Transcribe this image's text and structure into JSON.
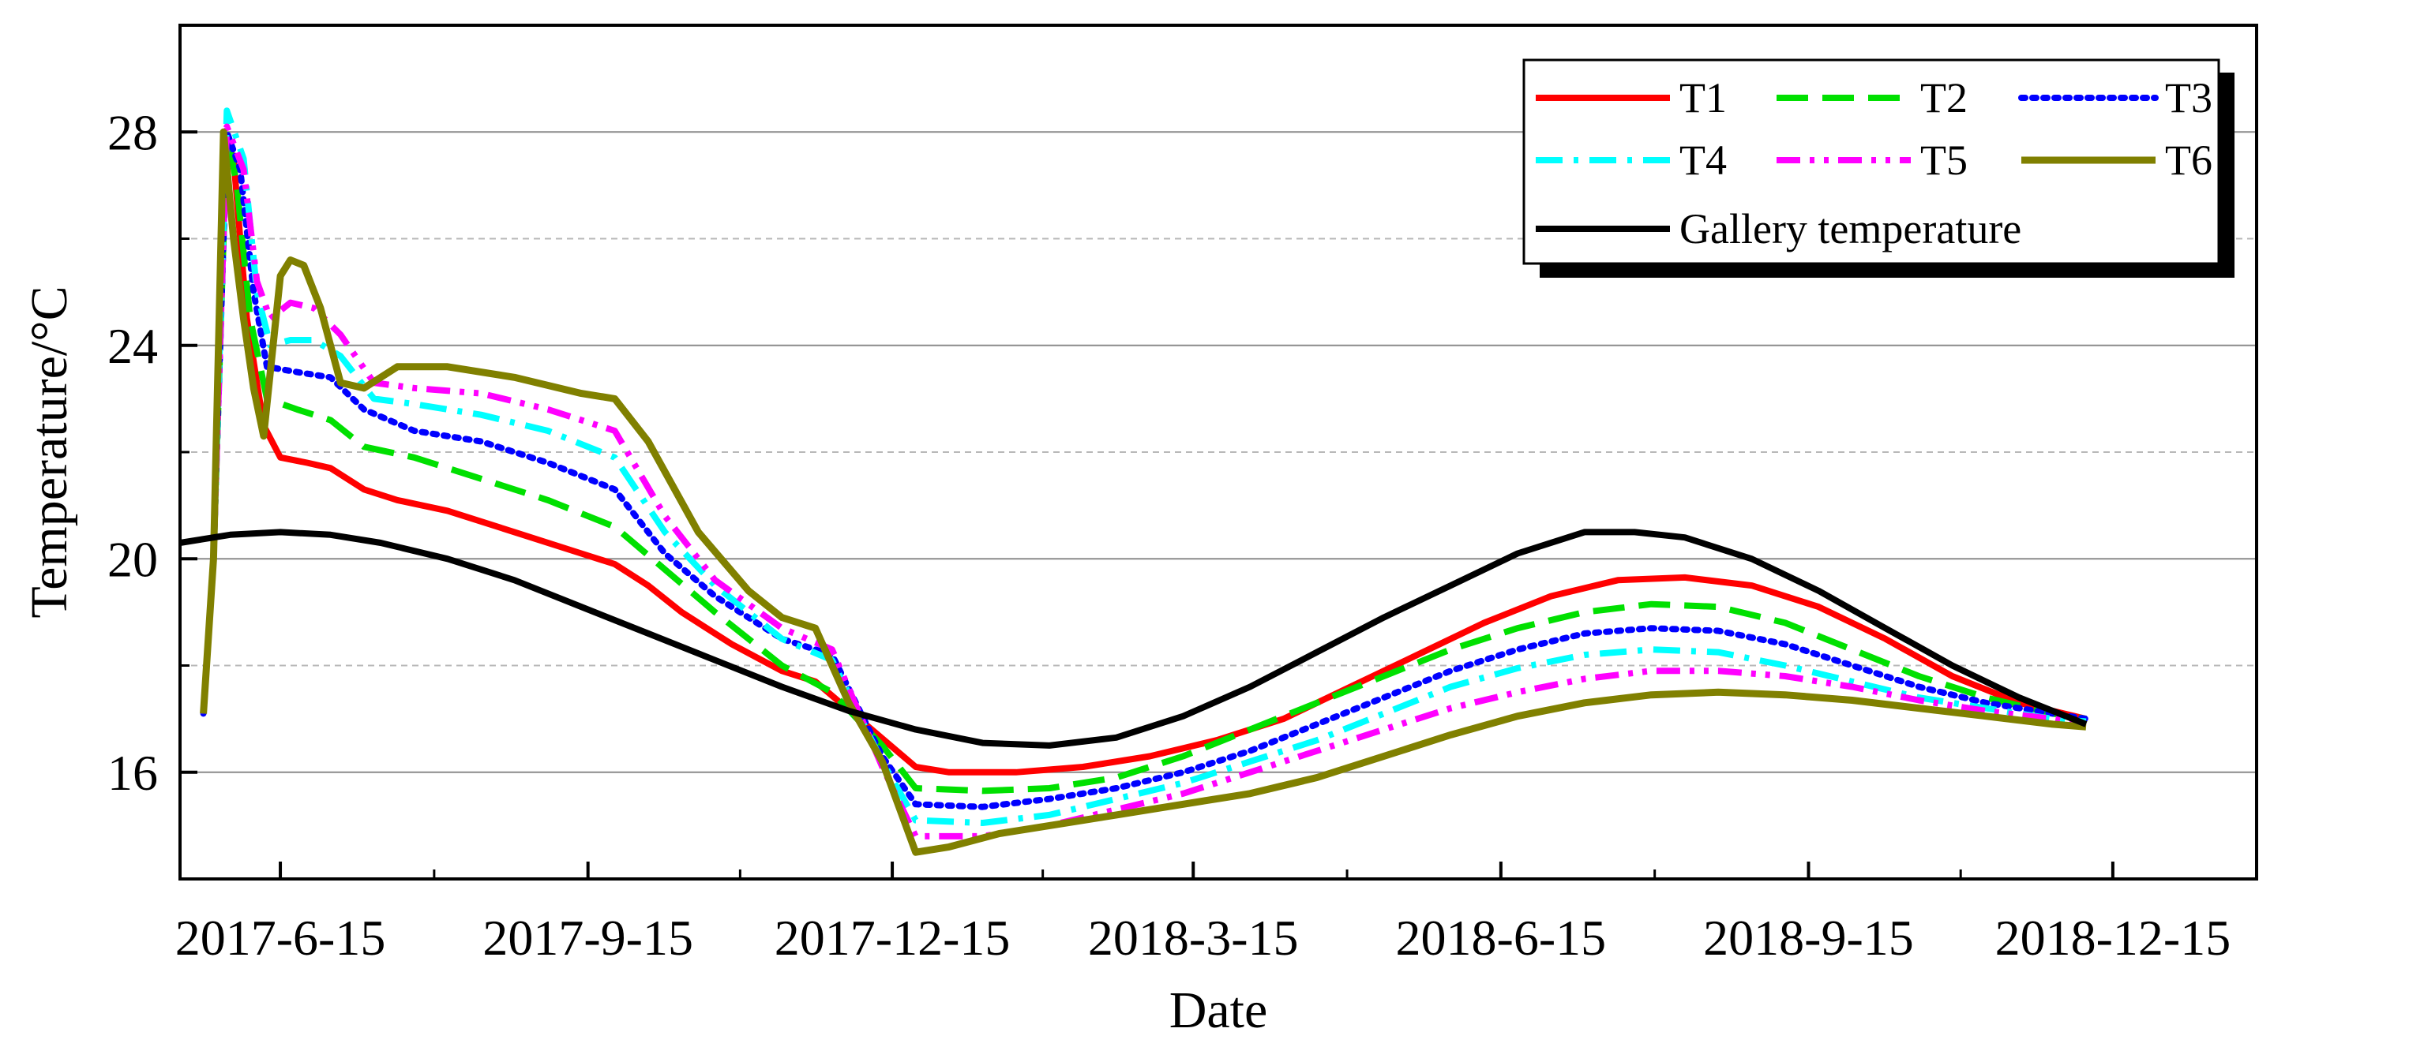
{
  "chart_data": {
    "type": "line",
    "title": "",
    "xlabel": "Date",
    "ylabel": "Temperature/°C",
    "x_ticks": [
      "2017-6-15",
      "2017-9-15",
      "2017-12-15",
      "2018-3-15",
      "2018-6-15",
      "2018-9-15",
      "2018-12-15"
    ],
    "x_tick_days": [
      0,
      92,
      183,
      273,
      365,
      457,
      548
    ],
    "xlim": [
      -30,
      591
    ],
    "ylim": [
      14,
      30
    ],
    "y_ticks": [
      16,
      20,
      24,
      28
    ],
    "y_minor_gridlines": [
      18,
      22,
      26
    ],
    "x_unit": "days since 2017-6-15",
    "legend_position": "top-right",
    "series": [
      {
        "name": "T1",
        "color": "#ff0000",
        "dash": "solid",
        "points": [
          [
            -23,
            17.1
          ],
          [
            -20,
            20
          ],
          [
            -17,
            28
          ],
          [
            -14,
            27.5
          ],
          [
            -10,
            24.5
          ],
          [
            -5,
            22.5
          ],
          [
            0,
            21.9
          ],
          [
            8,
            21.8
          ],
          [
            15,
            21.7
          ],
          [
            25,
            21.3
          ],
          [
            35,
            21.1
          ],
          [
            50,
            20.9
          ],
          [
            70,
            20.5
          ],
          [
            90,
            20.1
          ],
          [
            100,
            19.9
          ],
          [
            110,
            19.5
          ],
          [
            120,
            19
          ],
          [
            135,
            18.4
          ],
          [
            150,
            17.9
          ],
          [
            160,
            17.7
          ],
          [
            175,
            16.9
          ],
          [
            190,
            16.1
          ],
          [
            200,
            16
          ],
          [
            220,
            16
          ],
          [
            240,
            16.1
          ],
          [
            260,
            16.3
          ],
          [
            280,
            16.6
          ],
          [
            300,
            17
          ],
          [
            320,
            17.6
          ],
          [
            340,
            18.2
          ],
          [
            360,
            18.8
          ],
          [
            380,
            19.3
          ],
          [
            400,
            19.6
          ],
          [
            420,
            19.65
          ],
          [
            440,
            19.5
          ],
          [
            460,
            19.1
          ],
          [
            480,
            18.5
          ],
          [
            500,
            17.8
          ],
          [
            520,
            17.3
          ],
          [
            540,
            17
          ]
        ]
      },
      {
        "name": "T2",
        "color": "#00e000",
        "dash": "long-dash",
        "points": [
          [
            -23,
            17.1
          ],
          [
            -20,
            20
          ],
          [
            -16,
            28
          ],
          [
            -13,
            27
          ],
          [
            -9,
            24.5
          ],
          [
            -4,
            23
          ],
          [
            5,
            22.8
          ],
          [
            15,
            22.6
          ],
          [
            25,
            22.1
          ],
          [
            40,
            21.9
          ],
          [
            60,
            21.5
          ],
          [
            80,
            21.1
          ],
          [
            100,
            20.6
          ],
          [
            115,
            19.8
          ],
          [
            130,
            19
          ],
          [
            150,
            18
          ],
          [
            165,
            17.5
          ],
          [
            180,
            16.5
          ],
          [
            190,
            15.7
          ],
          [
            210,
            15.65
          ],
          [
            230,
            15.7
          ],
          [
            250,
            15.9
          ],
          [
            270,
            16.3
          ],
          [
            290,
            16.8
          ],
          [
            310,
            17.3
          ],
          [
            330,
            17.8
          ],
          [
            350,
            18.3
          ],
          [
            370,
            18.7
          ],
          [
            390,
            19
          ],
          [
            410,
            19.15
          ],
          [
            430,
            19.1
          ],
          [
            450,
            18.8
          ],
          [
            470,
            18.3
          ],
          [
            490,
            17.8
          ],
          [
            510,
            17.4
          ],
          [
            530,
            17.1
          ],
          [
            540,
            17
          ]
        ]
      },
      {
        "name": "T3",
        "color": "#0000ff",
        "dash": "dotted",
        "points": [
          [
            -23,
            17.1
          ],
          [
            -20,
            20
          ],
          [
            -16,
            28
          ],
          [
            -12,
            27.3
          ],
          [
            -8,
            25
          ],
          [
            -4,
            23.6
          ],
          [
            5,
            23.5
          ],
          [
            15,
            23.4
          ],
          [
            25,
            22.8
          ],
          [
            40,
            22.4
          ],
          [
            60,
            22.2
          ],
          [
            80,
            21.8
          ],
          [
            100,
            21.3
          ],
          [
            115,
            20.1
          ],
          [
            130,
            19.3
          ],
          [
            150,
            18.5
          ],
          [
            165,
            18.2
          ],
          [
            180,
            16.3
          ],
          [
            190,
            15.4
          ],
          [
            210,
            15.35
          ],
          [
            230,
            15.5
          ],
          [
            250,
            15.7
          ],
          [
            270,
            16
          ],
          [
            290,
            16.4
          ],
          [
            310,
            16.9
          ],
          [
            330,
            17.4
          ],
          [
            350,
            17.9
          ],
          [
            370,
            18.3
          ],
          [
            390,
            18.6
          ],
          [
            410,
            18.7
          ],
          [
            430,
            18.65
          ],
          [
            450,
            18.4
          ],
          [
            470,
            18
          ],
          [
            490,
            17.6
          ],
          [
            510,
            17.3
          ],
          [
            530,
            17.1
          ],
          [
            540,
            17
          ]
        ]
      },
      {
        "name": "T4",
        "color": "#00ffff",
        "dash": "dash-dot",
        "points": [
          [
            -23,
            17.1
          ],
          [
            -20,
            20
          ],
          [
            -16,
            28.4
          ],
          [
            -11,
            27.5
          ],
          [
            -7,
            25
          ],
          [
            -3,
            24
          ],
          [
            3,
            24.1
          ],
          [
            10,
            24.1
          ],
          [
            18,
            23.8
          ],
          [
            28,
            23
          ],
          [
            40,
            22.9
          ],
          [
            60,
            22.7
          ],
          [
            80,
            22.4
          ],
          [
            100,
            21.9
          ],
          [
            115,
            20.5
          ],
          [
            130,
            19.5
          ],
          [
            150,
            18.5
          ],
          [
            165,
            18.1
          ],
          [
            180,
            16.2
          ],
          [
            190,
            15.1
          ],
          [
            210,
            15.05
          ],
          [
            230,
            15.2
          ],
          [
            250,
            15.5
          ],
          [
            270,
            15.8
          ],
          [
            290,
            16.2
          ],
          [
            310,
            16.6
          ],
          [
            330,
            17.1
          ],
          [
            350,
            17.6
          ],
          [
            370,
            17.95
          ],
          [
            390,
            18.2
          ],
          [
            410,
            18.3
          ],
          [
            430,
            18.25
          ],
          [
            450,
            18
          ],
          [
            470,
            17.7
          ],
          [
            490,
            17.4
          ],
          [
            510,
            17.2
          ],
          [
            530,
            17
          ],
          [
            540,
            16.95
          ]
        ]
      },
      {
        "name": "T5",
        "color": "#ff00ff",
        "dash": "dash-dot-dot",
        "points": [
          [
            -23,
            17.1
          ],
          [
            -20,
            20
          ],
          [
            -16,
            28.1
          ],
          [
            -11,
            27.3
          ],
          [
            -7,
            25.2
          ],
          [
            -3,
            24.5
          ],
          [
            3,
            24.8
          ],
          [
            10,
            24.7
          ],
          [
            18,
            24.2
          ],
          [
            28,
            23.3
          ],
          [
            40,
            23.2
          ],
          [
            60,
            23.1
          ],
          [
            80,
            22.8
          ],
          [
            100,
            22.4
          ],
          [
            115,
            20.8
          ],
          [
            130,
            19.6
          ],
          [
            150,
            18.7
          ],
          [
            165,
            18.3
          ],
          [
            180,
            16.1
          ],
          [
            190,
            14.8
          ],
          [
            210,
            14.8
          ],
          [
            230,
            15
          ],
          [
            250,
            15.3
          ],
          [
            270,
            15.6
          ],
          [
            290,
            16
          ],
          [
            310,
            16.4
          ],
          [
            330,
            16.8
          ],
          [
            350,
            17.2
          ],
          [
            370,
            17.5
          ],
          [
            390,
            17.75
          ],
          [
            410,
            17.9
          ],
          [
            430,
            17.9
          ],
          [
            450,
            17.8
          ],
          [
            470,
            17.6
          ],
          [
            490,
            17.35
          ],
          [
            510,
            17.15
          ],
          [
            530,
            17
          ],
          [
            540,
            16.9
          ]
        ]
      },
      {
        "name": "T6",
        "color": "#808000",
        "dash": "solid",
        "points": [
          [
            -23,
            17.1
          ],
          [
            -20,
            20
          ],
          [
            -17,
            28
          ],
          [
            -14,
            26
          ],
          [
            -11,
            24.5
          ],
          [
            -8,
            23.2
          ],
          [
            -5,
            22.3
          ],
          [
            -3,
            23.5
          ],
          [
            0,
            25.3
          ],
          [
            3,
            25.6
          ],
          [
            7,
            25.5
          ],
          [
            12,
            24.7
          ],
          [
            18,
            23.3
          ],
          [
            25,
            23.2
          ],
          [
            35,
            23.6
          ],
          [
            50,
            23.6
          ],
          [
            70,
            23.4
          ],
          [
            90,
            23.1
          ],
          [
            100,
            23
          ],
          [
            110,
            22.2
          ],
          [
            125,
            20.5
          ],
          [
            140,
            19.4
          ],
          [
            150,
            18.9
          ],
          [
            160,
            18.7
          ],
          [
            170,
            17.3
          ],
          [
            180,
            16.2
          ],
          [
            190,
            14.5
          ],
          [
            200,
            14.6
          ],
          [
            215,
            14.85
          ],
          [
            230,
            15
          ],
          [
            250,
            15.2
          ],
          [
            270,
            15.4
          ],
          [
            290,
            15.6
          ],
          [
            310,
            15.9
          ],
          [
            330,
            16.3
          ],
          [
            350,
            16.7
          ],
          [
            370,
            17.05
          ],
          [
            390,
            17.3
          ],
          [
            410,
            17.45
          ],
          [
            430,
            17.5
          ],
          [
            450,
            17.45
          ],
          [
            470,
            17.35
          ],
          [
            490,
            17.2
          ],
          [
            510,
            17.05
          ],
          [
            530,
            16.9
          ],
          [
            540,
            16.85
          ]
        ]
      },
      {
        "name": "Gallery temperature",
        "color": "#000000",
        "dash": "solid",
        "points": [
          [
            -30,
            20.3
          ],
          [
            -15,
            20.45
          ],
          [
            0,
            20.5
          ],
          [
            15,
            20.45
          ],
          [
            30,
            20.3
          ],
          [
            50,
            20
          ],
          [
            70,
            19.6
          ],
          [
            90,
            19.1
          ],
          [
            110,
            18.6
          ],
          [
            130,
            18.1
          ],
          [
            150,
            17.6
          ],
          [
            170,
            17.15
          ],
          [
            190,
            16.8
          ],
          [
            210,
            16.55
          ],
          [
            230,
            16.5
          ],
          [
            250,
            16.65
          ],
          [
            270,
            17.05
          ],
          [
            290,
            17.6
          ],
          [
            310,
            18.25
          ],
          [
            330,
            18.9
          ],
          [
            350,
            19.5
          ],
          [
            370,
            20.1
          ],
          [
            390,
            20.5
          ],
          [
            405,
            20.5
          ],
          [
            420,
            20.4
          ],
          [
            440,
            20
          ],
          [
            460,
            19.4
          ],
          [
            480,
            18.7
          ],
          [
            500,
            18
          ],
          [
            520,
            17.4
          ],
          [
            540,
            16.9
          ]
        ]
      }
    ]
  }
}
